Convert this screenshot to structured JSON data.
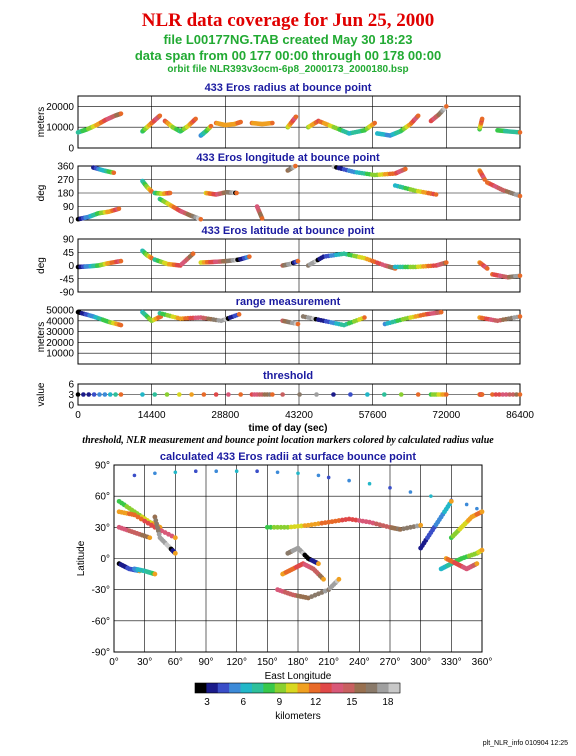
{
  "header": {
    "title": "NLR data coverage for Jun 25, 2000",
    "line1": "file L00177NG.TAB created May 30 18:23",
    "line2": "data span from 00 177 00:00 through 00 178 00:00",
    "line3": "orbit file NLR393v3ocm-6p8_2000173_2000180.bsp"
  },
  "caption": "threshold, NLR measurement and bounce point location markers colored by calculated radius value",
  "footer": "plt_NLR_info 010904 12:25",
  "chart_data": [
    {
      "type": "scatter",
      "title": "433 Eros radius at bounce point",
      "ylabel": "meters",
      "ylim": [
        0,
        25000
      ],
      "yticks": [
        "0",
        "10000",
        "20000"
      ],
      "series": [
        {
          "x": [
            0,
            1800,
            3600,
            5400,
            7200,
            8400
          ],
          "y": [
            7500,
            9000,
            11000,
            13500,
            15500,
            16500
          ]
        },
        {
          "x": [
            12600,
            13500,
            14400,
            15300,
            16000
          ],
          "y": [
            8000,
            10000,
            12000,
            14000,
            15500
          ]
        },
        {
          "x": [
            17000,
            18500,
            20000,
            21500,
            23000
          ],
          "y": [
            13000,
            10000,
            8000,
            10500,
            14000
          ]
        },
        {
          "x": [
            24000,
            25000,
            26000
          ],
          "y": [
            6000,
            8000,
            10500
          ]
        },
        {
          "x": [
            27000,
            28800,
            30600,
            31800
          ],
          "y": [
            12000,
            11000,
            11500,
            12500
          ]
        },
        {
          "x": [
            34000,
            36000,
            38000
          ],
          "y": [
            12000,
            11500,
            12000
          ]
        },
        {
          "x": [
            41000,
            41800,
            42600
          ],
          "y": [
            10000,
            12500,
            15000
          ]
        },
        {
          "x": [
            45000,
            47000,
            50000,
            53000,
            56000,
            58000
          ],
          "y": [
            10000,
            13000,
            10000,
            7000,
            8500,
            12000
          ]
        },
        {
          "x": [
            58500,
            61000,
            63000,
            65000,
            66500
          ],
          "y": [
            7000,
            6000,
            8000,
            11500,
            15500
          ]
        },
        {
          "x": [
            69000,
            70500,
            72000
          ],
          "y": [
            13000,
            16000,
            20000
          ]
        },
        {
          "x": [
            78500,
            79000
          ],
          "y": [
            9000,
            14000
          ]
        },
        {
          "x": [
            82000,
            84000,
            86400
          ],
          "y": [
            8500,
            8000,
            7500
          ]
        }
      ]
    },
    {
      "type": "scatter",
      "title": "433 Eros longitude at bounce point",
      "ylabel": "deg",
      "ylim": [
        0,
        360
      ],
      "yticks": [
        "0",
        "90",
        "180",
        "270",
        "360"
      ],
      "series": [
        {
          "x": [
            0,
            2000,
            4000,
            6000,
            8000
          ],
          "y": [
            5,
            20,
            45,
            55,
            75
          ]
        },
        {
          "x": [
            3000,
            5000,
            7000
          ],
          "y": [
            350,
            330,
            315
          ]
        },
        {
          "x": [
            12600,
            13500,
            14400
          ],
          "y": [
            260,
            220,
            190
          ]
        },
        {
          "x": [
            15000,
            16500,
            18000
          ],
          "y": [
            180,
            175,
            180
          ]
        },
        {
          "x": [
            16000,
            18000,
            20000,
            22000,
            24000
          ],
          "y": [
            140,
            100,
            60,
            30,
            5
          ]
        },
        {
          "x": [
            25000,
            27000,
            29000,
            31000
          ],
          "y": [
            180,
            170,
            185,
            180
          ]
        },
        {
          "x": [
            35000,
            36000
          ],
          "y": [
            90,
            10
          ]
        },
        {
          "x": [
            41000,
            42500
          ],
          "y": [
            330,
            360
          ]
        },
        {
          "x": [
            50000,
            54000,
            58000,
            62000,
            64000
          ],
          "y": [
            355,
            320,
            300,
            310,
            340
          ]
        },
        {
          "x": [
            62000,
            66000,
            70000
          ],
          "y": [
            230,
            195,
            170
          ]
        },
        {
          "x": [
            78500,
            79500
          ],
          "y": [
            330,
            270
          ]
        },
        {
          "x": [
            80000,
            83000,
            86400
          ],
          "y": [
            250,
            200,
            160
          ]
        }
      ]
    },
    {
      "type": "scatter",
      "title": "433 Eros latitude at bounce point",
      "ylabel": "deg",
      "ylim": [
        -90,
        90
      ],
      "yticks": [
        "-90",
        "-45",
        "0",
        "45",
        "90"
      ],
      "series": [
        {
          "x": [
            0,
            2000,
            4000,
            6000,
            8400
          ],
          "y": [
            -5,
            -3,
            0,
            8,
            15
          ]
        },
        {
          "x": [
            12600,
            13500,
            14400
          ],
          "y": [
            50,
            35,
            25
          ]
        },
        {
          "x": [
            15000,
            17500,
            20000,
            22500
          ],
          "y": [
            20,
            5,
            0,
            40
          ]
        },
        {
          "x": [
            24000,
            26500,
            29000,
            31500,
            33500
          ],
          "y": [
            10,
            12,
            15,
            20,
            30
          ]
        },
        {
          "x": [
            40000,
            41500,
            43000
          ],
          "y": [
            0,
            5,
            15
          ]
        },
        {
          "x": [
            45000,
            48000,
            52000,
            56000,
            60000,
            62000
          ],
          "y": [
            0,
            30,
            40,
            25,
            0,
            -10
          ]
        },
        {
          "x": [
            62000,
            66000,
            70000,
            72000
          ],
          "y": [
            -5,
            -5,
            0,
            10
          ]
        },
        {
          "x": [
            78500,
            80000
          ],
          "y": [
            10,
            -10
          ]
        },
        {
          "x": [
            81000,
            84000,
            86400
          ],
          "y": [
            -30,
            -40,
            -35
          ]
        }
      ]
    },
    {
      "type": "scatter",
      "title": "range measurement",
      "ylabel": "meters",
      "ylim": [
        0,
        50000
      ],
      "yticks": [
        "10000",
        "20000",
        "30000",
        "40000",
        "50000"
      ],
      "series": [
        {
          "x": [
            0,
            3000,
            6000,
            8400
          ],
          "y": [
            48000,
            44000,
            39000,
            36000
          ]
        },
        {
          "x": [
            12600,
            14400,
            16200
          ],
          "y": [
            48000,
            40000,
            44000
          ]
        },
        {
          "x": [
            16000,
            20000,
            24000,
            28000,
            31500
          ],
          "y": [
            47000,
            42000,
            43000,
            40000,
            46000
          ]
        },
        {
          "x": [
            40000,
            43000
          ],
          "y": [
            40000,
            37000
          ]
        },
        {
          "x": [
            44000,
            48000,
            52000,
            56000
          ],
          "y": [
            44000,
            40000,
            36000,
            43000
          ]
        },
        {
          "x": [
            60000,
            64000,
            68000,
            71000
          ],
          "y": [
            37000,
            42000,
            46000,
            48000
          ]
        },
        {
          "x": [
            78500,
            82000,
            86400
          ],
          "y": [
            43000,
            40000,
            44000
          ]
        }
      ]
    },
    {
      "type": "scatter",
      "title": "threshold",
      "xlabel": "time of day (sec)",
      "ylabel": "value",
      "ylim": [
        0,
        6
      ],
      "yticks": [
        "0",
        "3",
        "6"
      ],
      "xticks": [
        "0",
        "14400",
        "28800",
        "43200",
        "57600",
        "72000",
        "86400"
      ],
      "series": [
        {
          "x": [
            0,
            8400
          ],
          "y": [
            3,
            3
          ]
        },
        {
          "x": [
            12600,
            31800
          ],
          "y": [
            3,
            3
          ]
        },
        {
          "x": [
            34000,
            38000
          ],
          "y": [
            3,
            3
          ]
        },
        {
          "x": [
            40000,
            66500
          ],
          "y": [
            3,
            3
          ]
        },
        {
          "x": [
            69000,
            72000
          ],
          "y": [
            3,
            3
          ]
        },
        {
          "x": [
            78500,
            79000
          ],
          "y": [
            3,
            3
          ]
        },
        {
          "x": [
            81000,
            86400
          ],
          "y": [
            3,
            3
          ]
        }
      ]
    },
    {
      "type": "scatter",
      "title": "calculated 433 Eros radii at surface bounce point",
      "xlabel": "East Longitude",
      "ylabel": "Latitude",
      "xlim": [
        0,
        360
      ],
      "ylim": [
        -90,
        90
      ],
      "xticks": [
        "0°",
        "30°",
        "60°",
        "90°",
        "120°",
        "150°",
        "180°",
        "210°",
        "240°",
        "270°",
        "300°",
        "330°",
        "360°"
      ],
      "yticks": [
        "90°",
        "60°",
        "30°",
        "0°",
        "-30°",
        "-60°",
        "-90°"
      ],
      "series": [
        {
          "x": [
            20,
            40,
            60,
            80,
            100,
            120,
            140,
            160,
            180,
            200
          ],
          "y": [
            80,
            82,
            83,
            84,
            84,
            84,
            84,
            83,
            82,
            80
          ]
        },
        {
          "x": [
            210,
            230,
            250,
            270,
            290,
            310,
            330,
            345,
            355
          ],
          "y": [
            78,
            75,
            72,
            68,
            64,
            60,
            56,
            52,
            48
          ]
        },
        {
          "x": [
            5,
            20,
            35,
            45
          ],
          "y": [
            55,
            45,
            35,
            30
          ]
        },
        {
          "x": [
            5,
            20,
            40,
            60
          ],
          "y": [
            45,
            42,
            30,
            20
          ]
        },
        {
          "x": [
            5,
            20,
            35
          ],
          "y": [
            30,
            25,
            20
          ]
        },
        {
          "x": [
            40,
            45,
            55,
            60
          ],
          "y": [
            40,
            20,
            10,
            5
          ]
        },
        {
          "x": [
            5,
            15,
            25
          ],
          "y": [
            -5,
            -10,
            -12
          ]
        },
        {
          "x": [
            20,
            30,
            40
          ],
          "y": [
            -10,
            -12,
            -15
          ]
        },
        {
          "x": [
            150,
            170,
            190,
            210,
            230,
            250,
            270,
            280,
            300
          ],
          "y": [
            30,
            30,
            32,
            35,
            38,
            35,
            30,
            28,
            32
          ]
        },
        {
          "x": [
            165,
            175,
            185,
            195,
            205
          ],
          "y": [
            -15,
            -10,
            -5,
            -10,
            -20
          ]
        },
        {
          "x": [
            160,
            175,
            190,
            210,
            220
          ],
          "y": [
            -30,
            -35,
            -38,
            -30,
            -20
          ]
        },
        {
          "x": [
            170,
            180,
            190,
            200
          ],
          "y": [
            5,
            10,
            0,
            -5
          ]
        },
        {
          "x": [
            300,
            310,
            320,
            330
          ],
          "y": [
            10,
            25,
            40,
            55
          ]
        },
        {
          "x": [
            320,
            330,
            340,
            355,
            360
          ],
          "y": [
            -10,
            -5,
            0,
            5,
            8
          ]
        },
        {
          "x": [
            330,
            340,
            350,
            360
          ],
          "y": [
            20,
            30,
            40,
            45
          ]
        },
        {
          "x": [
            325,
            335,
            345,
            355
          ],
          "y": [
            0,
            -5,
            -10,
            -5
          ]
        }
      ]
    }
  ],
  "colorbar": {
    "label": "kilometers",
    "ticks": [
      "3",
      "6",
      "9",
      "12",
      "15",
      "18"
    ],
    "colors": [
      "#000000",
      "#1b1b8a",
      "#3a4ec8",
      "#3c8ad8",
      "#22b7c8",
      "#2ec09a",
      "#38c84a",
      "#8ad030",
      "#d8d820",
      "#f0a020",
      "#e86a28",
      "#e04848",
      "#d85878",
      "#c86060",
      "#987050",
      "#8a7a6a",
      "#a0a0a0",
      "#c8c8c8"
    ]
  },
  "colors": {
    "title": "#e00000",
    "subtitle": "#22aa33",
    "panel_title": "#1a1aa0"
  }
}
